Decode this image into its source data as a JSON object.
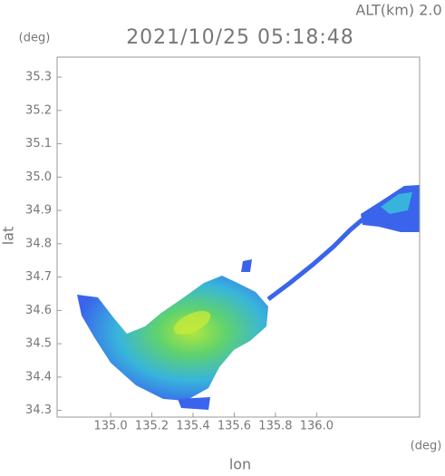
{
  "chart_data": {
    "type": "map",
    "title": "2021/10/25 05:18:48",
    "altitude_label": "ALT(km) 2.0",
    "xlabel": "lon",
    "ylabel": "lat",
    "xunit": "(deg)",
    "yunit": "(deg)",
    "xlim": [
      134.74,
      136.5
    ],
    "ylim": [
      34.28,
      35.36
    ],
    "xticks": [
      {
        "value": 135.0,
        "label": "135.0"
      },
      135.2,
      135.4,
      135.6,
      135.8,
      {
        "value": 136.0,
        "label": "136.0"
      }
    ],
    "yticks": [
      {
        "value": 34.3,
        "label": "34.3"
      },
      34.4,
      34.5,
      34.6,
      34.7,
      34.8,
      34.9,
      {
        "value": 35.0,
        "label": "35.0"
      },
      35.1,
      35.2,
      35.3
    ]
  }
}
